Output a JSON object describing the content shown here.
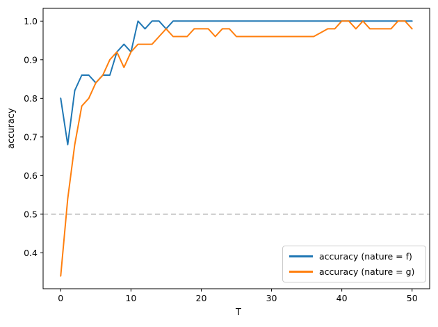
{
  "figure": {
    "xlabel": "T",
    "ylabel": "accuracy",
    "background_color": "#ffffff",
    "spine_color": "#000000",
    "tick_label_color": "#000000"
  },
  "legend": {
    "position": "lower right",
    "border_color": "#cccccc",
    "entries": [
      {
        "label": "accuracy (nature = f)",
        "color": "#1f77b4"
      },
      {
        "label": "accuracy (nature = g)",
        "color": "#ff7f0e"
      }
    ]
  },
  "chart_data": {
    "type": "line",
    "title": "",
    "xlabel": "T",
    "ylabel": "accuracy",
    "grid": false,
    "legend_position": "lower right",
    "xlim": [
      -2.5,
      52.5
    ],
    "ylim": [
      0.307,
      1.033
    ],
    "xticks": [
      0,
      10,
      20,
      30,
      40,
      50
    ],
    "yticks": [
      0.4,
      0.5,
      0.6,
      0.7,
      0.8,
      0.9,
      1.0
    ],
    "ytick_labels": [
      "0.4",
      "0.5",
      "0.6",
      "0.7",
      "0.8",
      "0.9",
      "1.0"
    ],
    "reference_lines": [
      {
        "y": 0.5,
        "style": "dashed",
        "color": "#b9b9b9"
      }
    ],
    "x": [
      0,
      1,
      2,
      3,
      4,
      5,
      6,
      7,
      8,
      9,
      10,
      11,
      12,
      13,
      14,
      15,
      16,
      17,
      18,
      19,
      20,
      21,
      22,
      23,
      24,
      25,
      26,
      27,
      28,
      29,
      30,
      31,
      32,
      33,
      34,
      35,
      36,
      37,
      38,
      39,
      40,
      41,
      42,
      43,
      44,
      45,
      46,
      47,
      48,
      49,
      50
    ],
    "series": [
      {
        "name": "accuracy (nature = f)",
        "color": "#1f77b4",
        "values": [
          0.8,
          0.68,
          0.82,
          0.86,
          0.86,
          0.84,
          0.86,
          0.86,
          0.92,
          0.94,
          0.92,
          1.0,
          0.98,
          1.0,
          1.0,
          0.98,
          1.0,
          1.0,
          1.0,
          1.0,
          1.0,
          1.0,
          1.0,
          1.0,
          1.0,
          1.0,
          1.0,
          1.0,
          1.0,
          1.0,
          1.0,
          1.0,
          1.0,
          1.0,
          1.0,
          1.0,
          1.0,
          1.0,
          1.0,
          1.0,
          1.0,
          1.0,
          1.0,
          1.0,
          1.0,
          1.0,
          1.0,
          1.0,
          1.0,
          1.0,
          1.0
        ]
      },
      {
        "name": "accuracy (nature = g)",
        "color": "#ff7f0e",
        "values": [
          0.34,
          0.54,
          0.68,
          0.78,
          0.8,
          0.84,
          0.86,
          0.9,
          0.92,
          0.88,
          0.92,
          0.94,
          0.94,
          0.94,
          0.96,
          0.98,
          0.96,
          0.96,
          0.96,
          0.98,
          0.98,
          0.98,
          0.96,
          0.98,
          0.98,
          0.96,
          0.96,
          0.96,
          0.96,
          0.96,
          0.96,
          0.96,
          0.96,
          0.96,
          0.96,
          0.96,
          0.96,
          0.97,
          0.98,
          0.98,
          1.0,
          1.0,
          0.98,
          1.0,
          0.98,
          0.98,
          0.98,
          0.98,
          1.0,
          1.0,
          0.98
        ]
      }
    ]
  }
}
